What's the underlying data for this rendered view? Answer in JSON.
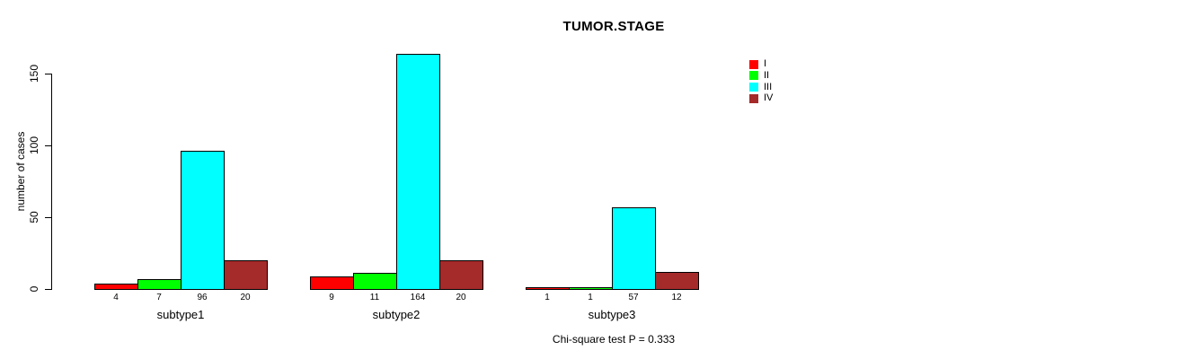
{
  "chart_data": {
    "type": "bar",
    "title": "TUMOR.STAGE",
    "ylabel": "number of cases",
    "xlabel": "",
    "categories": [
      "subtype1",
      "subtype2",
      "subtype3"
    ],
    "series": [
      {
        "name": "I",
        "color": "#ff0000",
        "values": [
          4,
          9,
          1
        ]
      },
      {
        "name": "II",
        "color": "#00ff00",
        "values": [
          7,
          11,
          1
        ]
      },
      {
        "name": "III",
        "color": "#00ffff",
        "values": [
          96,
          164,
          57
        ]
      },
      {
        "name": "IV",
        "color": "#a52a2a",
        "values": [
          20,
          20,
          12
        ]
      }
    ],
    "bar_value_labels": [
      [
        4,
        7,
        96,
        20
      ],
      [
        9,
        11,
        164,
        20
      ],
      [
        1,
        1,
        57,
        12
      ]
    ],
    "yticks": [
      0,
      50,
      100,
      150
    ],
    "ylim": [
      0,
      164
    ],
    "grid": false,
    "legend_position": "top-right",
    "footnote": "Chi-square test P = 0.333",
    "colors": {
      "background": "#ffffff",
      "axis": "#000000",
      "text": "#000000"
    }
  }
}
